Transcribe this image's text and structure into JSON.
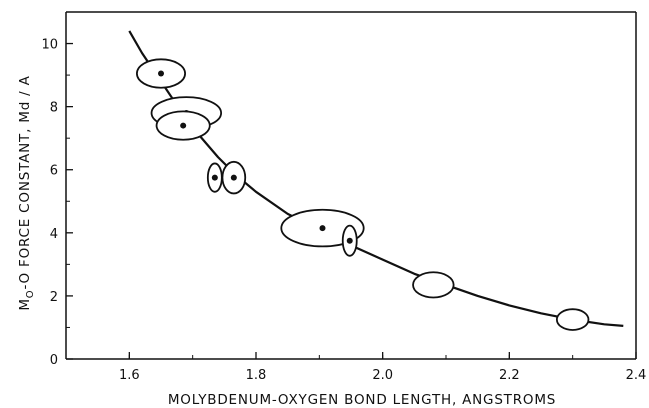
{
  "chart_data": {
    "type": "scatter",
    "xlabel": "MOLYBDENUM-OXYGEN BOND LENGTH, ANGSTROMS",
    "ylabel": "MO-O FORCE CONSTANT, Md / A",
    "ylabel_parts": {
      "prefix": "M",
      "sub": "O",
      "suffix": "-O FORCE CONSTANT, Md / A"
    },
    "xlim": [
      1.5,
      2.4
    ],
    "ylim": [
      0,
      11
    ],
    "x_ticks": [
      "1.6",
      "1.8",
      "2.0",
      "2.2",
      "2.4"
    ],
    "y_ticks": [
      "0",
      "2",
      "4",
      "6",
      "8",
      "10"
    ],
    "points": [
      {
        "x": 1.65,
        "y": 9.05,
        "ex": 0.038,
        "ey": 0.45,
        "dot": true
      },
      {
        "x": 1.69,
        "y": 7.8,
        "ex": 0.055,
        "ey": 0.5,
        "dot": true
      },
      {
        "x": 1.685,
        "y": 7.4,
        "ex": 0.042,
        "ey": 0.45,
        "dot": true
      },
      {
        "x": 1.735,
        "y": 5.75,
        "ex": 0.011,
        "ey": 0.45,
        "dot": true
      },
      {
        "x": 1.765,
        "y": 5.75,
        "ex": 0.018,
        "ey": 0.5,
        "dot": true
      },
      {
        "x": 1.905,
        "y": 4.15,
        "ex": 0.065,
        "ey": 0.58,
        "dot": true
      },
      {
        "x": 1.948,
        "y": 3.75,
        "ex": 0.011,
        "ey": 0.48,
        "dot": true
      },
      {
        "x": 2.08,
        "y": 2.35,
        "ex": 0.032,
        "ey": 0.4,
        "dot": false
      },
      {
        "x": 2.3,
        "y": 1.25,
        "ex": 0.025,
        "ey": 0.33,
        "dot": false
      }
    ],
    "curve": [
      [
        1.6,
        10.4
      ],
      [
        1.62,
        9.7
      ],
      [
        1.65,
        8.8
      ],
      [
        1.68,
        7.9
      ],
      [
        1.71,
        7.1
      ],
      [
        1.74,
        6.4
      ],
      [
        1.77,
        5.8
      ],
      [
        1.8,
        5.3
      ],
      [
        1.85,
        4.6
      ],
      [
        1.9,
        4.1
      ],
      [
        1.95,
        3.6
      ],
      [
        2.0,
        3.15
      ],
      [
        2.05,
        2.7
      ],
      [
        2.1,
        2.35
      ],
      [
        2.15,
        2.0
      ],
      [
        2.2,
        1.7
      ],
      [
        2.25,
        1.45
      ],
      [
        2.3,
        1.25
      ],
      [
        2.35,
        1.1
      ],
      [
        2.38,
        1.05
      ]
    ],
    "grid": false
  }
}
